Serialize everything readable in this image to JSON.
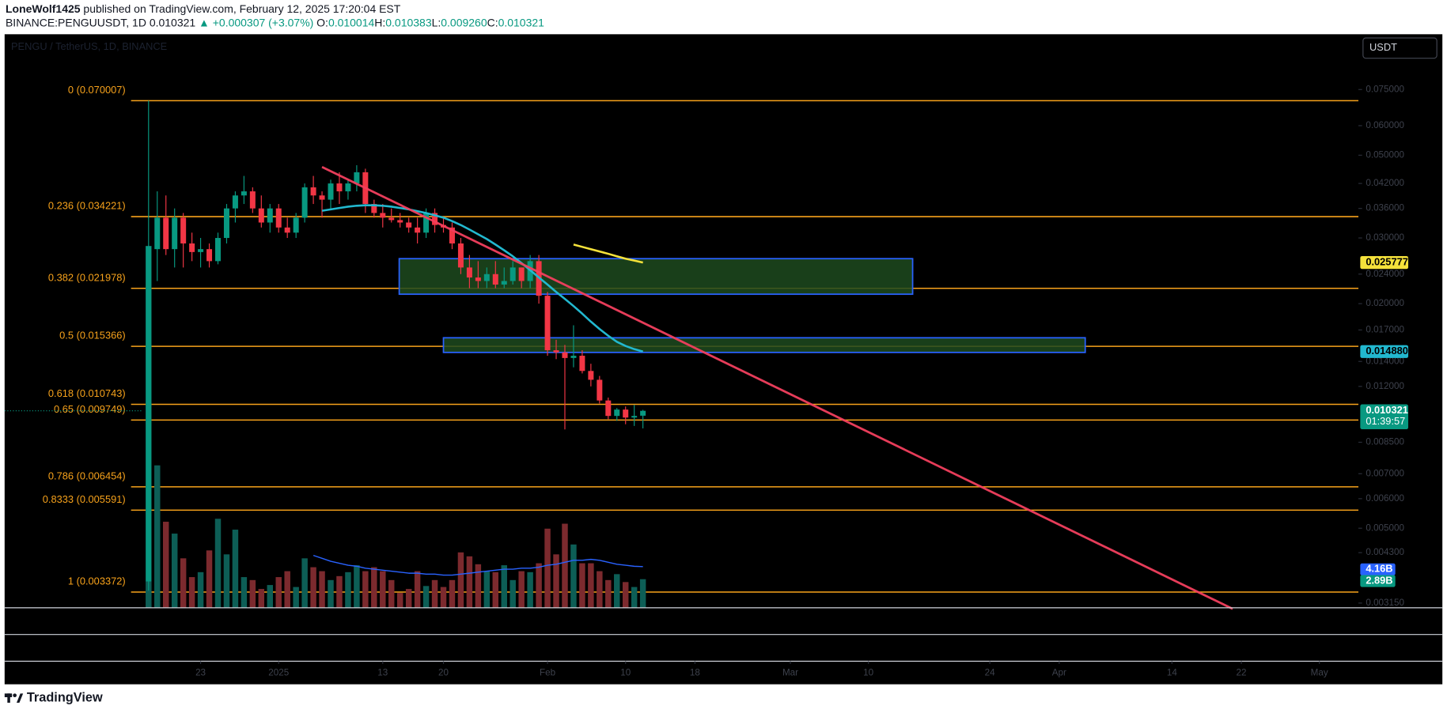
{
  "header": {
    "author": "LoneWolf1425",
    "published": " published on TradingView.com, February 12, 2025 17:20:04 EST",
    "symbol": "BINANCE:PENGUUSDT, 1D ",
    "price": "0.010321",
    "change": " ▲ +0.000307 (+3.07%) ",
    "ohlc": [
      {
        "key": "O:",
        "value": "0.010014"
      },
      {
        "key": "H:",
        "value": "0.010383"
      },
      {
        "key": "L:",
        "value": "0.009260"
      },
      {
        "key": "C:",
        "value": "0.010321"
      }
    ]
  },
  "chart_data": {
    "type": "candlestick",
    "title": "PENGU / TetherUS, 1D, BINANCE",
    "currency": "USDT",
    "countdown": "01:39:57",
    "up_color": "#089981",
    "down_color": "#f23645",
    "log_scale": true,
    "xlim": [
      -16.6,
      139.5
    ],
    "ylim": [
      0.00306,
      0.1055
    ],
    "xticks": [
      {
        "value": 6,
        "label": "23"
      },
      {
        "value": 15,
        "label": "2025"
      },
      {
        "value": 27,
        "label": "13"
      },
      {
        "value": 34,
        "label": "20"
      },
      {
        "value": 46,
        "label": "Feb"
      },
      {
        "value": 55,
        "label": "10"
      },
      {
        "value": 63,
        "label": "18"
      },
      {
        "value": 74,
        "label": "Mar"
      },
      {
        "value": 83,
        "label": "10"
      },
      {
        "value": 97,
        "label": "24"
      },
      {
        "value": 105,
        "label": "Apr"
      },
      {
        "value": 118,
        "label": "14"
      },
      {
        "value": 126,
        "label": "22"
      },
      {
        "value": 135,
        "label": "May"
      }
    ],
    "yticks": [
      {
        "value": 0.075,
        "label": "0.075000"
      },
      {
        "value": 0.06,
        "label": "0.060000"
      },
      {
        "value": 0.05,
        "label": "0.050000"
      },
      {
        "value": 0.042,
        "label": "0.042000"
      },
      {
        "value": 0.036,
        "label": "0.036000"
      },
      {
        "value": 0.03,
        "label": "0.030000"
      },
      {
        "value": 0.024,
        "label": "0.024000"
      },
      {
        "value": 0.02,
        "label": "0.020000"
      },
      {
        "value": 0.017,
        "label": "0.017000"
      },
      {
        "value": 0.014,
        "label": "0.014000"
      },
      {
        "value": 0.012,
        "label": "0.012000"
      },
      {
        "value": 0.0085,
        "label": "0.008500"
      },
      {
        "value": 0.007,
        "label": "0.007000"
      },
      {
        "value": 0.006,
        "label": "0.006000"
      },
      {
        "value": 0.005,
        "label": "0.005000"
      },
      {
        "value": 0.0043,
        "label": "0.004300"
      },
      {
        "value": 0.00315,
        "label": "0.003150"
      }
    ],
    "open": [
      0.0036,
      0.028,
      0.034,
      0.028,
      0.034,
      0.029,
      0.0275,
      0.028,
      0.026,
      0.03,
      0.036,
      0.039,
      0.04,
      0.036,
      0.033,
      0.036,
      0.032,
      0.031,
      0.034,
      0.041,
      0.039,
      0.038,
      0.042,
      0.04,
      0.042,
      0.045,
      0.037,
      0.035,
      0.034,
      0.0335,
      0.033,
      0.032,
      0.031,
      0.035,
      0.0325,
      0.032,
      0.029,
      0.025,
      0.0235,
      0.023,
      0.024,
      0.0225,
      0.023,
      0.025,
      0.023,
      0.026,
      0.021,
      0.015,
      0.0148,
      0.0143,
      0.0145,
      0.0132,
      0.0125,
      0.011,
      0.01,
      0.0104,
      0.0099,
      0.010014
    ],
    "high": [
      0.07,
      0.04,
      0.039,
      0.036,
      0.035,
      0.031,
      0.03,
      0.029,
      0.031,
      0.037,
      0.04,
      0.044,
      0.041,
      0.039,
      0.037,
      0.037,
      0.034,
      0.035,
      0.042,
      0.044,
      0.04,
      0.043,
      0.045,
      0.043,
      0.047,
      0.046,
      0.038,
      0.037,
      0.036,
      0.035,
      0.034,
      0.034,
      0.036,
      0.036,
      0.034,
      0.033,
      0.03,
      0.027,
      0.026,
      0.025,
      0.026,
      0.025,
      0.026,
      0.025,
      0.027,
      0.027,
      0.0215,
      0.016,
      0.0155,
      0.0175,
      0.015,
      0.0138,
      0.0128,
      0.0112,
      0.0105,
      0.0106,
      0.0107,
      0.010383
    ],
    "low": [
      0.0034,
      0.023,
      0.027,
      0.025,
      0.025,
      0.026,
      0.025,
      0.025,
      0.0255,
      0.029,
      0.033,
      0.037,
      0.035,
      0.032,
      0.031,
      0.031,
      0.03,
      0.03,
      0.033,
      0.037,
      0.034,
      0.036,
      0.037,
      0.038,
      0.04,
      0.035,
      0.034,
      0.032,
      0.033,
      0.032,
      0.031,
      0.029,
      0.03,
      0.031,
      0.031,
      0.028,
      0.024,
      0.022,
      0.022,
      0.022,
      0.022,
      0.022,
      0.0225,
      0.022,
      0.022,
      0.02,
      0.0145,
      0.0142,
      0.0092,
      0.0135,
      0.013,
      0.012,
      0.0108,
      0.0098,
      0.0097,
      0.0095,
      0.0094,
      0.00926
    ],
    "close": [
      0.0285,
      0.034,
      0.028,
      0.034,
      0.029,
      0.0275,
      0.028,
      0.026,
      0.03,
      0.036,
      0.039,
      0.04,
      0.036,
      0.033,
      0.036,
      0.032,
      0.031,
      0.034,
      0.041,
      0.039,
      0.038,
      0.042,
      0.04,
      0.042,
      0.045,
      0.037,
      0.035,
      0.034,
      0.0335,
      0.033,
      0.032,
      0.031,
      0.035,
      0.0325,
      0.032,
      0.029,
      0.025,
      0.0235,
      0.023,
      0.024,
      0.0225,
      0.023,
      0.025,
      0.023,
      0.026,
      0.021,
      0.015,
      0.0148,
      0.0143,
      0.0145,
      0.0132,
      0.0125,
      0.011,
      0.01,
      0.0104,
      0.0099,
      0.01,
      0.010321
    ],
    "volume": {
      "ylim": [
        0,
        58
      ],
      "up_color": "#0d5e56",
      "down_color": "#7c2a2e",
      "last_label": "2.89B",
      "values": [
        36.6,
        14.4,
        8.7,
        7.5,
        5.0,
        3.1,
        3.6,
        5.8,
        9.0,
        5.4,
        7.9,
        3.1,
        2.8,
        1.9,
        2.3,
        3.1,
        3.7,
        2.1,
        5.0,
        4.1,
        3.7,
        2.8,
        3.2,
        3.6,
        4.3,
        3.7,
        4.1,
        3.7,
        2.8,
        1.5,
        1.9,
        3.7,
        2.2,
        2.8,
        2.1,
        2.8,
        5.6,
        5.2,
        4.4,
        3.7,
        3.6,
        4.3,
        2.8,
        3.7,
        3.6,
        4.5,
        8.0,
        5.4,
        8.5,
        6.4,
        4.5,
        4.5,
        3.7,
        2.8,
        3.4,
        2.6,
        2.1,
        2.89
      ]
    },
    "volume_ma": {
      "color": "#2962ff",
      "last_label": "4.16B",
      "values": [
        null,
        null,
        null,
        null,
        null,
        null,
        null,
        null,
        null,
        null,
        null,
        null,
        null,
        null,
        null,
        null,
        null,
        null,
        null,
        5.3,
        5.0,
        4.7,
        4.5,
        4.3,
        4.2,
        4.0,
        3.9,
        3.8,
        3.7,
        3.6,
        3.5,
        3.5,
        3.4,
        3.4,
        3.3,
        3.3,
        3.4,
        3.5,
        3.6,
        3.7,
        3.8,
        3.9,
        3.9,
        4.0,
        4.0,
        4.1,
        4.3,
        4.4,
        4.6,
        4.8,
        4.8,
        4.9,
        4.8,
        4.6,
        4.4,
        4.3,
        4.2,
        4.16
      ]
    },
    "ma": {
      "color": "#22b8cf",
      "last_label": "0.014880",
      "values": [
        null,
        null,
        null,
        null,
        null,
        null,
        null,
        null,
        null,
        null,
        null,
        null,
        null,
        null,
        null,
        null,
        null,
        null,
        null,
        null,
        0.0355,
        0.0358,
        0.0361,
        0.0364,
        0.0366,
        0.0367,
        0.0367,
        0.0366,
        0.0364,
        0.0361,
        0.0358,
        0.0354,
        0.035,
        0.0345,
        0.034,
        0.0333,
        0.0325,
        0.0316,
        0.0307,
        0.0298,
        0.0288,
        0.0278,
        0.0268,
        0.0257,
        0.0246,
        0.0235,
        0.0225,
        0.0215,
        0.0206,
        0.0197,
        0.0188,
        0.0179,
        0.0171,
        0.0164,
        0.0158,
        0.0154,
        0.0151,
        0.01488
      ]
    },
    "ma2": {
      "color": "#f5e23b",
      "values": [
        null,
        null,
        null,
        null,
        null,
        null,
        null,
        null,
        null,
        null,
        null,
        null,
        null,
        null,
        null,
        null,
        null,
        null,
        null,
        null,
        null,
        null,
        null,
        null,
        null,
        null,
        null,
        null,
        null,
        null,
        null,
        null,
        null,
        null,
        null,
        null,
        null,
        null,
        null,
        null,
        null,
        null,
        null,
        null,
        null,
        null,
        null,
        null,
        null,
        0.0288,
        0.0284,
        0.028,
        0.0276,
        0.0272,
        0.0268,
        0.0264,
        0.0261,
        0.025777
      ]
    },
    "fib_color": "#f7a21b",
    "fib_levels": [
      {
        "label": "0 (0.070007)",
        "value": 0.070007
      },
      {
        "label": "0.236 (0.034221)",
        "value": 0.034221
      },
      {
        "label": "0.382 (0.021978)",
        "value": 0.021978
      },
      {
        "label": "0.5 (0.015366)",
        "value": 0.015366
      },
      {
        "label": "0.618 (0.010743)",
        "value": 0.010743
      },
      {
        "label": "0.65 (0.009749)",
        "value": 0.009749
      },
      {
        "label": "0.786 (0.006454)",
        "value": 0.006454
      },
      {
        "label": "0.8333 (0.005591)",
        "value": 0.005591
      },
      {
        "label": "1 (0.003372)",
        "value": 0.003372
      }
    ],
    "trendline": {
      "color": "#f23f5e",
      "x": [
        20,
        125
      ],
      "y": [
        0.0465,
        0.00304
      ]
    },
    "zones": [
      {
        "x": [
          28.9,
          88.1
        ],
        "y": [
          0.0212,
          0.0264
        ]
      },
      {
        "x": [
          34,
          108
        ],
        "y": [
          0.0148,
          0.0162
        ]
      }
    ],
    "zone_fill": "#1d4a1f",
    "zone_stroke": "#2962ff"
  }
}
